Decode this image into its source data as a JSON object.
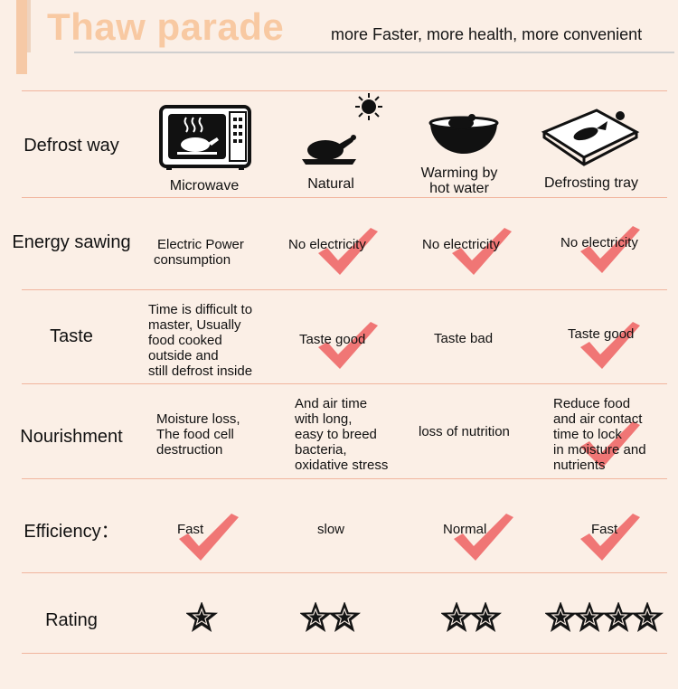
{
  "header": {
    "title": "Thaw parade",
    "subtitle": "more Faster, more health, more convenient"
  },
  "rows": {
    "defrost_way": "Defrost way",
    "energy": "Energy sawing",
    "taste": "Taste",
    "nourishment": "Nourishment",
    "efficiency": "Efficiency：",
    "rating": "Rating"
  },
  "methods": {
    "microwave": "Microwave",
    "natural": "Natural",
    "hot_water_line1": "Warming by",
    "hot_water_line2": "hot water",
    "tray": "Defrosting tray"
  },
  "energy": {
    "microwave_line1": "Electric Power",
    "microwave_line2": "consumption",
    "natural": "No electricity",
    "hot_water": "No electricity",
    "tray": "No electricity"
  },
  "taste": {
    "microwave_lines": [
      "Time is difficult to",
      "master,   Usually",
      "food cooked",
      "outside and",
      "still  defrost inside"
    ],
    "natural": "Taste good",
    "hot_water": "Taste bad",
    "tray": "Taste good"
  },
  "nourishment": {
    "microwave_lines": [
      "Moisture loss,",
      "The food cell",
      "destruction"
    ],
    "natural_lines": [
      "And air time",
      "with long,",
      "easy to breed",
      "bacteria,",
      "oxidative stress"
    ],
    "hot_water": "loss of nutrition",
    "tray_lines": [
      "Reduce food",
      "and air contact",
      "time to lock",
      "in moisture and",
      "nutrients"
    ]
  },
  "efficiency": {
    "microwave": "Fast",
    "natural": "slow",
    "hot_water": "Normal",
    "tray": "Fast"
  },
  "ratings": {
    "microwave": 1,
    "natural": 2,
    "hot_water": 2,
    "tray": 4
  },
  "colors": {
    "background": "#fbefe6",
    "accent": "#f8c9a2",
    "check": "#ef6b6b",
    "divider": "#f1b59e"
  },
  "icons": {
    "microwave": "microwave-icon",
    "natural": "roast-chicken-icon",
    "sun": "sun-icon",
    "hot_water": "bowl-icon",
    "tray": "defrost-tray-icon",
    "check": "checkmark-icon",
    "star": "star-icon"
  }
}
